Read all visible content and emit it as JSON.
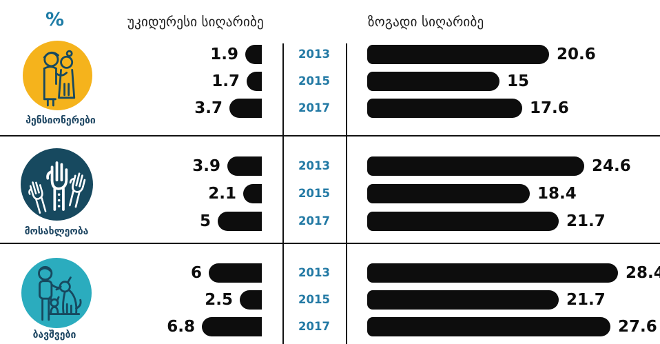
{
  "header": {
    "unit": "%"
  },
  "chart_data": {
    "type": "bar",
    "orientation": "horizontal",
    "unit": "%",
    "grid": false,
    "bar_color": "#0d0d0d",
    "year_color": "#2279A4",
    "metrics": [
      {
        "key": "extreme",
        "label": "უკიდურესი სიღარიბე",
        "side": "left"
      },
      {
        "key": "general",
        "label": "ზოგადი სიღარიბე",
        "side": "right"
      }
    ],
    "years": [
      "2013",
      "2015",
      "2017"
    ],
    "groups": [
      {
        "label": "პენსიონერები",
        "icon": "elderly-couple-icon",
        "circle_color": "#F5B31C",
        "extreme": [
          1.9,
          1.7,
          3.7
        ],
        "general": [
          20.6,
          15,
          17.6
        ]
      },
      {
        "label": "მოსახლეობა",
        "icon": "raised-hands-icon",
        "circle_color": "#17495F",
        "extreme": [
          3.9,
          2.1,
          5
        ],
        "general": [
          24.6,
          18.4,
          21.7
        ]
      },
      {
        "label": "ბავშვები",
        "icon": "child-with-dog-icon",
        "circle_color": "#2BACBE",
        "extreme": [
          6,
          2.5,
          6.8
        ],
        "general": [
          28.4,
          21.7,
          27.6
        ]
      }
    ]
  }
}
